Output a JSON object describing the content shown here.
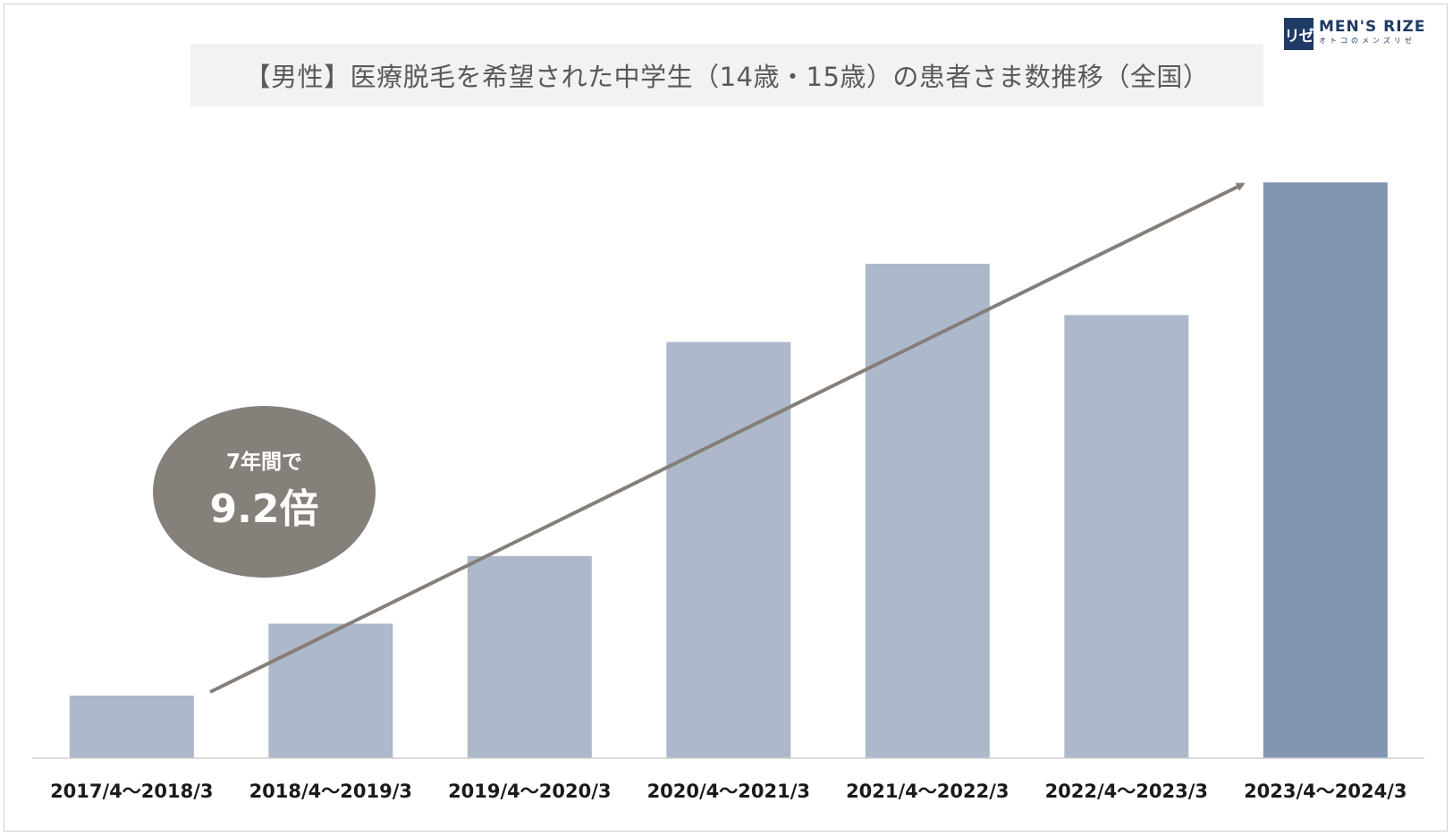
{
  "chart_data": {
    "type": "bar",
    "title": "【男性】医療脱毛を希望された中学生（14歳・15歳）の患者さま数推移（全国）",
    "categories": [
      "2017/4～2018/3",
      "2018/4～2019/3",
      "2019/4～2020/3",
      "2020/4～2021/3",
      "2021/4～2022/3",
      "2022/4～2023/3",
      "2023/4～2024/3"
    ],
    "values": [
      1.0,
      2.15,
      3.23,
      6.65,
      7.9,
      7.08,
      9.2
    ],
    "highlight_index": 6,
    "ylim": [
      0,
      9.2
    ],
    "grid": false,
    "xlabel": "",
    "ylabel": "",
    "colors": {
      "bar": "#adb8cb",
      "bar_highlight": "#8396b1",
      "trend_arrow": "#857f7a",
      "axis": "#d0d0d0"
    },
    "annotation": {
      "line1": "7年間で",
      "line2": "9.2倍"
    }
  },
  "logo": {
    "mark": "リゼ",
    "brand": "MEN'S RIZE",
    "sub": "オトコのメンズリゼ"
  }
}
